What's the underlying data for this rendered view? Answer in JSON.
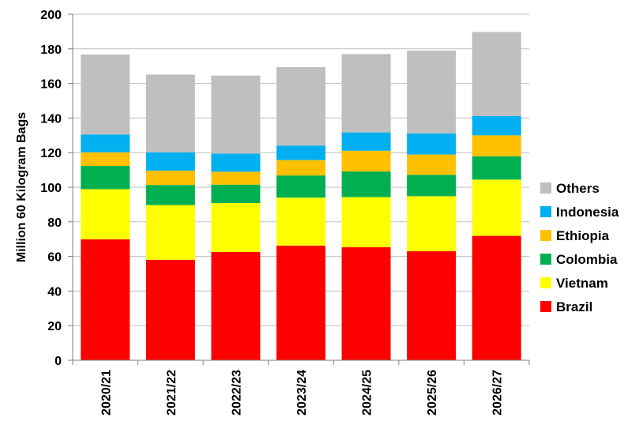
{
  "chart_data": {
    "type": "bar",
    "stacked": true,
    "ylabel": "Million 60 Kilogram Bags",
    "ylim": [
      0,
      200
    ],
    "ytick_step": 20,
    "grid": true,
    "legend_position": "right",
    "categories": [
      "2020/21",
      "2021/22",
      "2022/23",
      "2023/24",
      "2024/25",
      "2025/26",
      "2026/27"
    ],
    "series": [
      {
        "name": "Brazil",
        "color": "#ff0000",
        "values": [
          69.9,
          58.1,
          62.6,
          66.3,
          65.3,
          63.0,
          71.9
        ]
      },
      {
        "name": "Vietnam",
        "color": "#ffff00",
        "values": [
          29.0,
          31.6,
          28.3,
          27.7,
          29.0,
          31.8,
          32.5
        ]
      },
      {
        "name": "Colombia",
        "color": "#00b050",
        "values": [
          13.4,
          11.6,
          10.6,
          12.8,
          14.8,
          12.4,
          13.5
        ]
      },
      {
        "name": "Ethiopia",
        "color": "#ffc000",
        "values": [
          7.9,
          8.3,
          7.5,
          8.9,
          12.0,
          11.7,
          12.1
        ]
      },
      {
        "name": "Indonesia",
        "color": "#00b0f0",
        "values": [
          10.3,
          10.6,
          10.5,
          8.4,
          10.6,
          12.2,
          11.1
        ]
      },
      {
        "name": "Others",
        "color": "#bfbfbf",
        "values": [
          46.2,
          44.9,
          45.0,
          45.3,
          45.3,
          47.9,
          48.6
        ]
      }
    ]
  }
}
